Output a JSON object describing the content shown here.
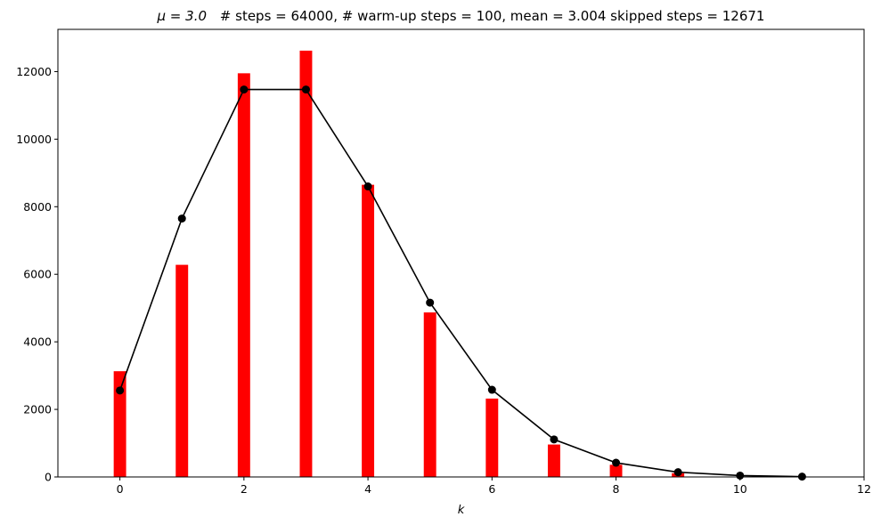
{
  "chart_data": {
    "type": "bar",
    "title_prefix": "μ = 3.0",
    "title": "# steps = 64000, # warm-up steps = 100, mean = 3.004 skipped steps = 12671",
    "xlabel": "k",
    "ylabel": "",
    "xlim": [
      -1,
      12
    ],
    "ylim": [
      0,
      13250
    ],
    "x_ticks": [
      0,
      2,
      4,
      6,
      8,
      10,
      12
    ],
    "y_ticks": [
      0,
      2000,
      4000,
      6000,
      8000,
      10000,
      12000
    ],
    "grid": false,
    "legend": "none",
    "bar_color": "#ff0000",
    "line_color": "#000000",
    "bars": {
      "x": [
        0,
        1,
        2,
        3,
        4,
        5,
        6,
        7,
        8,
        9
      ],
      "values": [
        3130,
        6280,
        11950,
        12620,
        8650,
        4870,
        2320,
        960,
        360,
        110
      ]
    },
    "line": {
      "x": [
        0,
        1,
        2,
        3,
        4,
        5,
        6,
        7,
        8,
        9,
        10,
        11
      ],
      "values": [
        2560,
        7650,
        11470,
        11470,
        8600,
        5160,
        2580,
        1110,
        420,
        140,
        40,
        10
      ]
    }
  }
}
